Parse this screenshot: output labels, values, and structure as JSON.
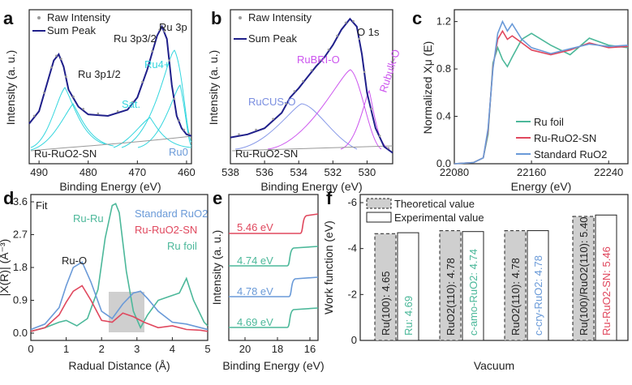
{
  "colors": {
    "navy": "#1f1f8a",
    "raw": "#9a9a9a",
    "cyan": "#33d6de",
    "purple": "#cc55ee",
    "blue": "#7a8ee0",
    "green": "#4cb89a",
    "red": "#e0485e",
    "lightblue": "#6a9ad8",
    "bg_bar": "#cfcfcf"
  },
  "chart_data": [
    {
      "panel": "a",
      "type": "line",
      "legend": [
        "Raw Intensity",
        "Sum Peak"
      ],
      "sample": "Ru-RuO2-SN",
      "annotations": [
        "Ru 3p",
        "Ru 3p3/2",
        "Ru 3p1/2",
        "Ru4+",
        "Sat.",
        "Ru0"
      ],
      "xlabel": "Binding Energy (eV)",
      "ylabel": "Intensity (a. u.)",
      "xlim": [
        492,
        459
      ],
      "xticks": [
        490,
        480,
        470,
        460
      ],
      "series": [
        {
          "name": "Sum Peak",
          "x": [
            492,
            490,
            488,
            487,
            486,
            485,
            484,
            482,
            480,
            476,
            472,
            470,
            468,
            466,
            465,
            464,
            463,
            462,
            461,
            460,
            459
          ],
          "y": [
            0.25,
            0.33,
            0.55,
            0.66,
            0.7,
            0.62,
            0.47,
            0.36,
            0.31,
            0.3,
            0.34,
            0.42,
            0.6,
            0.82,
            0.88,
            0.8,
            0.5,
            0.3,
            0.22,
            0.18,
            0.17
          ]
        }
      ]
    },
    {
      "panel": "b",
      "type": "line",
      "legend": [
        "Raw Intensity",
        "Sum Peak"
      ],
      "sample": "Ru-RuO2-SN",
      "region": "O 1s",
      "annotations": [
        "RuBRI-O",
        "RuCUS-O",
        "Rubulk-O"
      ],
      "xlabel": "Binding Energy (eV)",
      "ylabel": "Intensity (a. u.)",
      "xlim": [
        538,
        528.5
      ],
      "xticks": [
        538,
        536,
        534,
        532,
        530
      ],
      "series": [
        {
          "name": "Sum Peak",
          "x": [
            538,
            537,
            536,
            535,
            534.5,
            534,
            533.5,
            533,
            532.5,
            532,
            531.5,
            531,
            530.6,
            530.3,
            530,
            529.5,
            529,
            528.5
          ],
          "y": [
            0.16,
            0.18,
            0.22,
            0.32,
            0.42,
            0.48,
            0.55,
            0.62,
            0.68,
            0.76,
            0.86,
            0.93,
            0.88,
            0.7,
            0.45,
            0.22,
            0.1,
            0.06
          ]
        }
      ]
    },
    {
      "panel": "c",
      "type": "line",
      "xlabel": "Energy (eV)",
      "ylabel": "Normalized Xμ (E)",
      "xlim": [
        22080,
        22260
      ],
      "ylim": [
        0.0,
        1.3
      ],
      "xticks": [
        22080,
        22160,
        22240
      ],
      "yticks": [
        0.0,
        0.4,
        0.8,
        1.2
      ],
      "series": [
        {
          "name": "Ru foil",
          "x": [
            22080,
            22100,
            22110,
            22115,
            22120,
            22125,
            22130,
            22135,
            22140,
            22150,
            22160,
            22180,
            22200,
            22220,
            22240,
            22260
          ],
          "y": [
            0,
            0.01,
            0.05,
            0.25,
            0.85,
            0.98,
            0.88,
            0.82,
            0.9,
            1.05,
            1.1,
            1.0,
            0.92,
            1.06,
            1.0,
            0.98
          ]
        },
        {
          "name": "Ru-RuO2-SN",
          "x": [
            22080,
            22100,
            22110,
            22115,
            22120,
            22125,
            22130,
            22135,
            22140,
            22150,
            22160,
            22180,
            22200,
            22220,
            22240,
            22260
          ],
          "y": [
            0,
            0.01,
            0.05,
            0.28,
            0.82,
            1.05,
            1.12,
            1.05,
            1.08,
            1.02,
            0.96,
            0.92,
            0.96,
            1.02,
            0.98,
            0.99
          ]
        },
        {
          "name": "Standard RuO2",
          "x": [
            22080,
            22100,
            22110,
            22115,
            22120,
            22125,
            22130,
            22135,
            22140,
            22150,
            22160,
            22180,
            22200,
            22220,
            22240,
            22260
          ],
          "y": [
            0,
            0.01,
            0.05,
            0.3,
            0.8,
            1.1,
            1.2,
            1.12,
            1.18,
            1.05,
            0.98,
            0.93,
            0.97,
            1.01,
            0.99,
            1.0
          ]
        }
      ]
    },
    {
      "panel": "d",
      "type": "line",
      "label": "Fit",
      "annotations": [
        "Ru-O",
        "Ru-Ru"
      ],
      "xlabel": "Radual Distance (Å)",
      "ylabel": "|X(R)| (Å⁻³)",
      "xlim": [
        0,
        5
      ],
      "ylim": [
        -0.2,
        3.8
      ],
      "xticks": [
        0,
        1,
        2,
        3,
        4,
        5
      ],
      "yticks": [
        0.0,
        0.9,
        1.8,
        2.7,
        3.6
      ],
      "series": [
        {
          "name": "Standard RuO2",
          "x": [
            0,
            0.4,
            0.8,
            1.0,
            1.2,
            1.45,
            1.7,
            2.0,
            2.3,
            2.6,
            2.9,
            3.1,
            3.3,
            3.6,
            4.0,
            4.4,
            4.8,
            5.0
          ],
          "y": [
            0.1,
            0.25,
            0.7,
            1.3,
            1.8,
            1.95,
            1.4,
            0.6,
            0.4,
            0.8,
            1.1,
            1.15,
            0.95,
            0.6,
            0.3,
            0.25,
            0.15,
            0.1
          ]
        },
        {
          "name": "Ru-RuO2-SN",
          "x": [
            0,
            0.4,
            0.8,
            1.0,
            1.2,
            1.45,
            1.7,
            2.0,
            2.3,
            2.6,
            2.9,
            3.2,
            3.6,
            4.0,
            4.4,
            4.8,
            5.0
          ],
          "y": [
            0.05,
            0.15,
            0.5,
            0.85,
            1.15,
            1.3,
            0.9,
            0.35,
            0.3,
            0.55,
            0.45,
            0.3,
            0.15,
            0.2,
            0.1,
            0.08,
            0.05
          ]
        },
        {
          "name": "Ru foil",
          "x": [
            0,
            0.4,
            0.8,
            1.0,
            1.3,
            1.6,
            1.9,
            2.1,
            2.3,
            2.4,
            2.5,
            2.7,
            2.9,
            3.1,
            3.3,
            3.6,
            3.9,
            4.2,
            4.4,
            4.6,
            4.9,
            5.0
          ],
          "y": [
            0.05,
            0.15,
            0.3,
            0.35,
            0.2,
            0.4,
            1.2,
            2.6,
            3.5,
            3.55,
            3.3,
            1.7,
            0.6,
            0.15,
            0.5,
            0.9,
            1.0,
            1.1,
            1.5,
            0.9,
            0.3,
            0.2
          ]
        }
      ]
    },
    {
      "panel": "e",
      "type": "line",
      "xlabel": "Binding Energy (eV)",
      "ylabel": "Intensity (a. u.)",
      "xlim": [
        21,
        15.5
      ],
      "xticks": [
        20,
        18,
        16
      ],
      "series": [
        {
          "name": "5.46 eV",
          "cutoff": 16.5
        },
        {
          "name": "4.74 eV",
          "cutoff": 17.3
        },
        {
          "name": "4.78 eV",
          "cutoff": 17.2
        },
        {
          "name": "4.69 eV",
          "cutoff": 17.3
        }
      ]
    },
    {
      "panel": "f",
      "type": "bar",
      "legend": [
        "Theoretical value",
        "Experimental value"
      ],
      "xlabel": "Vacuum",
      "ylabel": "Work function (eV)",
      "ylim": [
        0,
        -6
      ],
      "yticks": [
        0,
        -2,
        -4,
        -6
      ],
      "groups": [
        {
          "theoretical_label": "Ru(100): 4.65",
          "theoretical": 4.65,
          "experimental_label": "Ru: 4.69",
          "experimental": 4.69
        },
        {
          "theoretical_label": "RuO2(110): 4.78",
          "theoretical": 4.78,
          "experimental_label": "c-amo-RuO2: 4.74",
          "experimental": 4.74
        },
        {
          "theoretical_label": "RuO2(110): 4.78",
          "theoretical": 4.78,
          "experimental_label": "c-cry-RuO2: 4.78",
          "experimental": 4.78
        },
        {
          "theoretical_label": "Ru(100)/RuO2(110): 5.40",
          "theoretical": 5.4,
          "experimental_label": "Ru-RuO2-SN: 5.46",
          "experimental": 5.46
        }
      ]
    }
  ],
  "panel_labels": [
    "a",
    "b",
    "c",
    "d",
    "e",
    "f"
  ]
}
